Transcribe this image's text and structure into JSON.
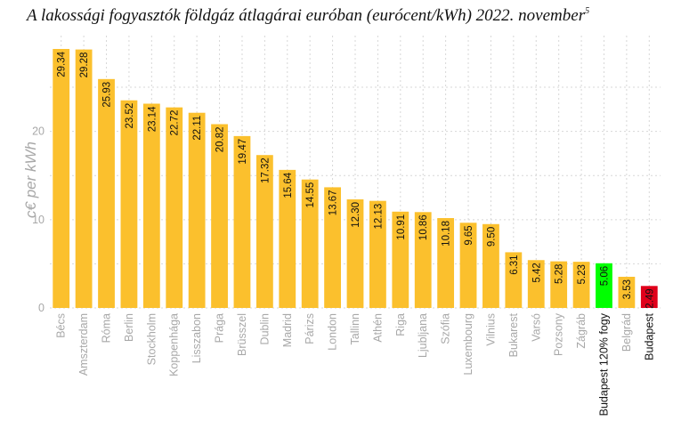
{
  "chart_data": {
    "type": "bar",
    "title": "A lakossági fogyasztók földgáz átlagárai euróban (eurócent/kWh) 2022. november",
    "title_superscript": "5",
    "xlabel": "",
    "ylabel": "c€ per kWh",
    "ylim": [
      0,
      29.34
    ],
    "yticks": [
      0,
      10,
      20
    ],
    "grid": true,
    "categories": [
      "Bécs",
      "Amszterdam",
      "Róma",
      "Berlin",
      "Stockholm",
      "Koppenhága",
      "Lisszabon",
      "Prága",
      "Brüsszel",
      "Dublin",
      "Madrid",
      "Párizs",
      "London",
      "Tallinn",
      "Athén",
      "Riga",
      "Ljubljana",
      "Szófia",
      "Luxembourg",
      "Vilnius",
      "Bukarest",
      "Varsó",
      "Pozsony",
      "Zágráb",
      "Budapest 120% fogy",
      "Belgrád",
      "Budapest"
    ],
    "values": [
      29.34,
      29.28,
      25.93,
      23.52,
      23.14,
      22.72,
      22.11,
      20.82,
      19.47,
      17.32,
      15.64,
      14.55,
      13.67,
      12.3,
      12.13,
      10.91,
      10.86,
      10.18,
      9.65,
      9.5,
      6.31,
      5.42,
      5.28,
      5.23,
      5.06,
      3.53,
      2.49
    ],
    "value_labels": [
      "29.34",
      "29.28",
      "25.93",
      "23.52",
      "23.14",
      "22.72",
      "22.11",
      "20.82",
      "19.47",
      "17.32",
      "15.64",
      "14.55",
      "13.67",
      "12.30",
      "12.13",
      "10.91",
      "10.86",
      "10.18",
      "9.65",
      "9.50",
      "6.31",
      "5.42",
      "5.28",
      "5.23",
      "5.06",
      "3.53",
      "2.49"
    ],
    "colors": {
      "default": "#FBC02D",
      "highlight_green": "#00FF00",
      "highlight_red": "#E0001A",
      "text_dark": "#111111",
      "text_grey": "#A8A8A8"
    },
    "bar_colors": [
      "default",
      "default",
      "default",
      "default",
      "default",
      "default",
      "default",
      "default",
      "default",
      "default",
      "default",
      "default",
      "default",
      "default",
      "default",
      "default",
      "default",
      "default",
      "default",
      "default",
      "default",
      "default",
      "default",
      "default",
      "highlight_green",
      "default",
      "highlight_red"
    ],
    "dark_tick_labels": [
      "Budapest 120% fogy",
      "Budapest"
    ]
  }
}
